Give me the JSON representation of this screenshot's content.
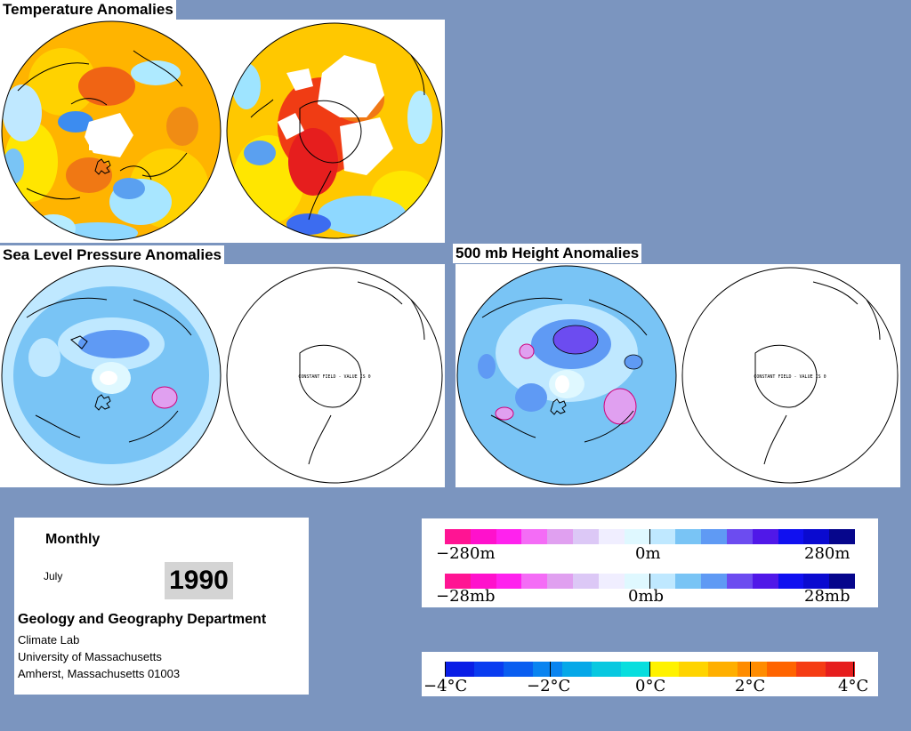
{
  "titles": {
    "temperature": "Temperature Anomalies",
    "slp": "Sea Level Pressure Anomalies",
    "height500": "500 mb Height Anomalies"
  },
  "constant_field_label": "CONSTANT FIELD - VALUE IS 0",
  "info": {
    "period": "Monthly",
    "month": "July",
    "year": "1990",
    "department": "Geology and Geography Department",
    "lab": "Climate Lab",
    "university": "University of Massachusetts",
    "address": "Amherst, Massachusetts 01003"
  },
  "height_scale": {
    "left": "−280m",
    "mid": "0m",
    "right": "280m"
  },
  "pressure_scale": {
    "left": "−28mb",
    "mid": "0mb",
    "right": "28mb"
  },
  "temp_scale": {
    "t0": "−4°C",
    "t1": "−2°C",
    "t2": "0°C",
    "t3": "2°C",
    "t4": "4°C"
  },
  "colors": {
    "background": "#7b95bf",
    "anomaly_scale": [
      "#ff1493",
      "#ff11cc",
      "#ff22ee",
      "#f46cf6",
      "#e0a0f0",
      "#dcc8f6",
      "#f0eeff",
      "#dff8ff",
      "#bfe8ff",
      "#79c4f5",
      "#5f9af4",
      "#6c4cf0",
      "#5018e8",
      "#1010f0",
      "#0a0ad0",
      "#06068c"
    ],
    "temp_scale": [
      "#0a1ee6",
      "#0a3cf0",
      "#0a5ef0",
      "#0a84f0",
      "#06a8e8",
      "#08c8e0",
      "#08dede",
      "#fff200",
      "#ffd400",
      "#ffaf00",
      "#ff8c00",
      "#ff6400",
      "#f53c14",
      "#e61e1e"
    ]
  }
}
